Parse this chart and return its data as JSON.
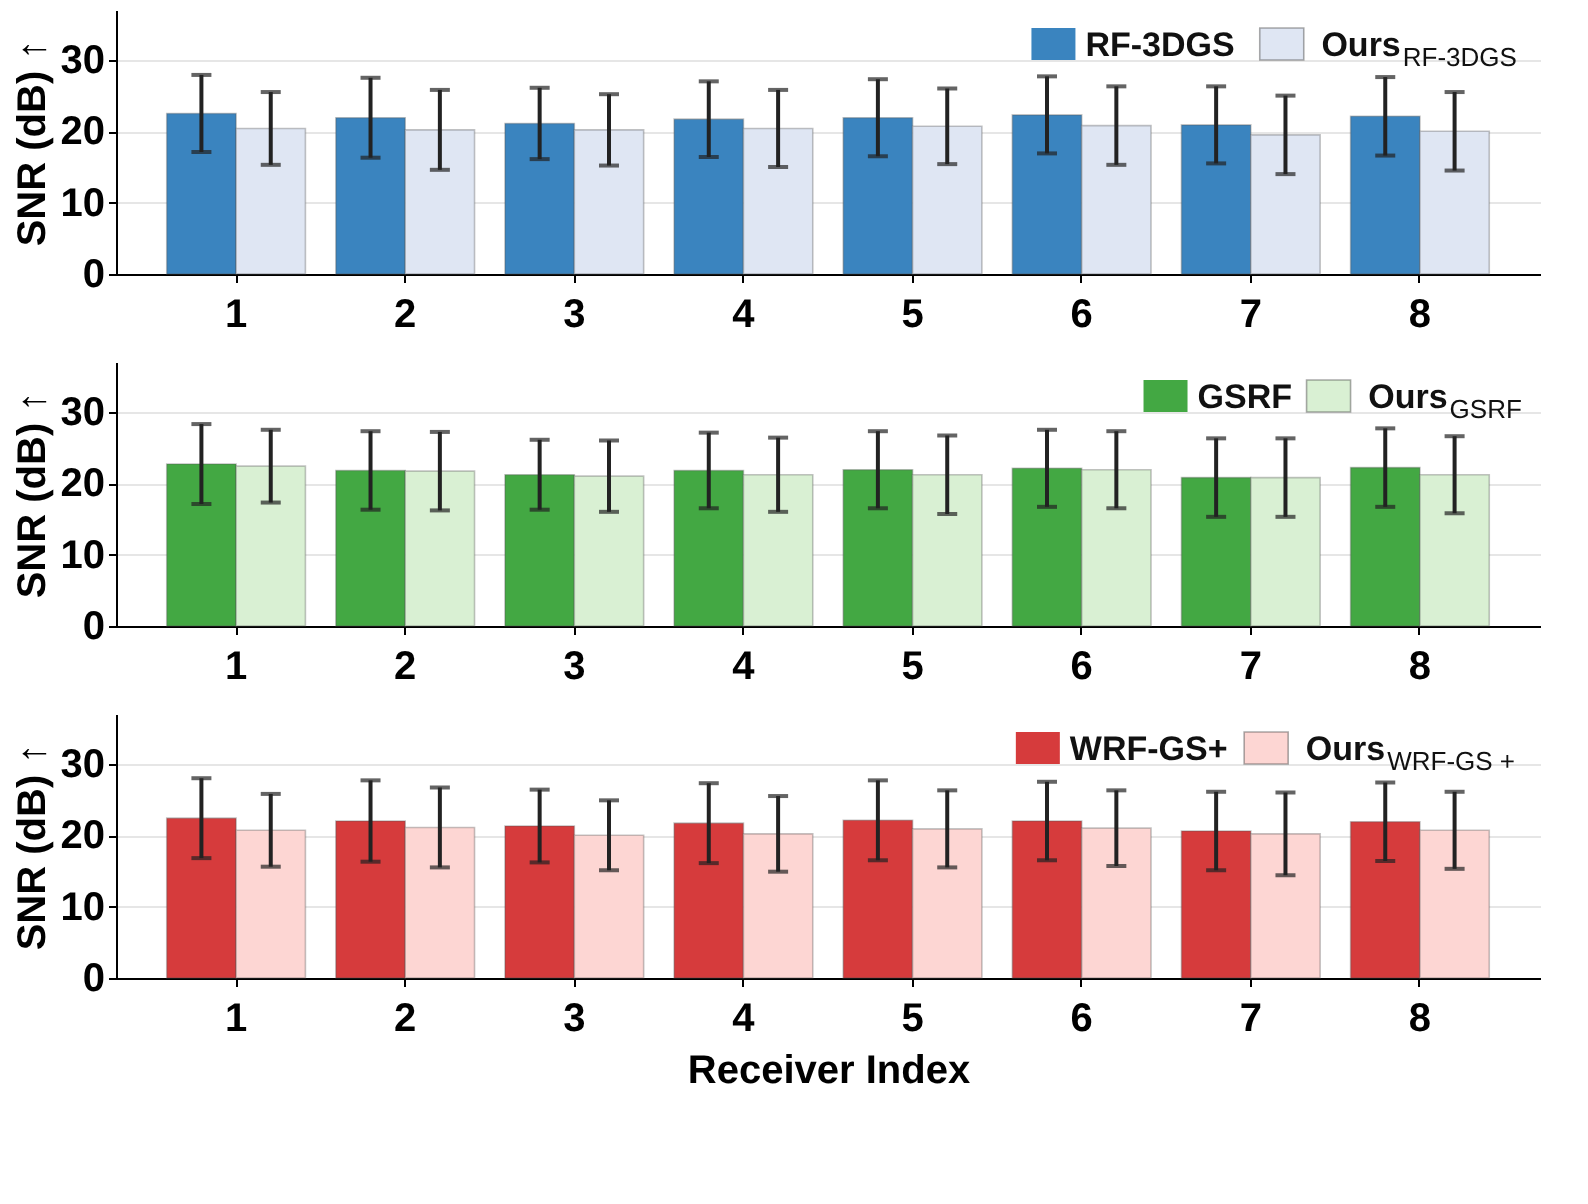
{
  "chart_data": [
    {
      "type": "bar",
      "categories": [
        "1",
        "2",
        "3",
        "4",
        "5",
        "6",
        "7",
        "8"
      ],
      "ylabel": "SNR (dB) ↑",
      "ylim": [
        0,
        37
      ],
      "yticks": [
        0,
        10,
        20,
        30
      ],
      "grid": "y",
      "legend": "top right",
      "series": [
        {
          "name": "RF-3DGS",
          "color": "#3a84bf",
          "values": [
            22.5,
            21.9,
            21.1,
            21.7,
            21.9,
            22.3,
            20.9,
            22.1
          ],
          "errors": [
            5.4,
            5.6,
            5.0,
            5.3,
            5.4,
            5.4,
            5.4,
            5.5
          ]
        },
        {
          "name": "Ours$_{RF-3DGS}$",
          "color": "#dfe6f3",
          "values": [
            20.4,
            20.2,
            20.2,
            20.4,
            20.7,
            20.8,
            19.5,
            20.0
          ],
          "errors": [
            5.1,
            5.6,
            5.0,
            5.4,
            5.3,
            5.5,
            5.5,
            5.5
          ]
        }
      ]
    },
    {
      "type": "bar",
      "categories": [
        "1",
        "2",
        "3",
        "4",
        "5",
        "6",
        "7",
        "8"
      ],
      "ylabel": "SNR (dB) ↑",
      "ylim": [
        0,
        37
      ],
      "yticks": [
        0,
        10,
        20,
        30
      ],
      "grid": "y",
      "legend": "top right",
      "series": [
        {
          "name": "GSRF",
          "color": "#43a843",
          "values": [
            22.7,
            21.8,
            21.2,
            21.8,
            21.9,
            22.1,
            20.8,
            22.2
          ],
          "errors": [
            5.6,
            5.5,
            4.9,
            5.3,
            5.4,
            5.4,
            5.5,
            5.5
          ]
        },
        {
          "name": "Ours$_{GSRF}$",
          "color": "#d9f0d3",
          "values": [
            22.4,
            21.7,
            21.0,
            21.2,
            21.2,
            21.9,
            20.8,
            21.2
          ],
          "errors": [
            5.1,
            5.5,
            5.0,
            5.2,
            5.5,
            5.4,
            5.5,
            5.4
          ]
        }
      ]
    },
    {
      "type": "bar",
      "categories": [
        "1",
        "2",
        "3",
        "4",
        "5",
        "6",
        "7",
        "8"
      ],
      "xlabel": "Receiver Index",
      "ylabel": "SNR (dB) ↑",
      "ylim": [
        0,
        37
      ],
      "yticks": [
        0,
        10,
        20,
        30
      ],
      "grid": "y",
      "legend": "top right",
      "series": [
        {
          "name": "WRF-GS+",
          "color": "#d63b3c",
          "values": [
            22.4,
            22.0,
            21.3,
            21.7,
            22.1,
            22.0,
            20.6,
            21.9
          ],
          "errors": [
            5.6,
            5.7,
            5.1,
            5.6,
            5.6,
            5.5,
            5.5,
            5.5
          ]
        },
        {
          "name": "Ours$_{WRF-GS +}$",
          "color": "#fdd6d3",
          "values": [
            20.7,
            21.1,
            20.0,
            20.2,
            20.9,
            21.0,
            20.2,
            20.7
          ],
          "errors": [
            5.1,
            5.6,
            4.9,
            5.3,
            5.4,
            5.3,
            5.8,
            5.4
          ]
        }
      ]
    }
  ]
}
